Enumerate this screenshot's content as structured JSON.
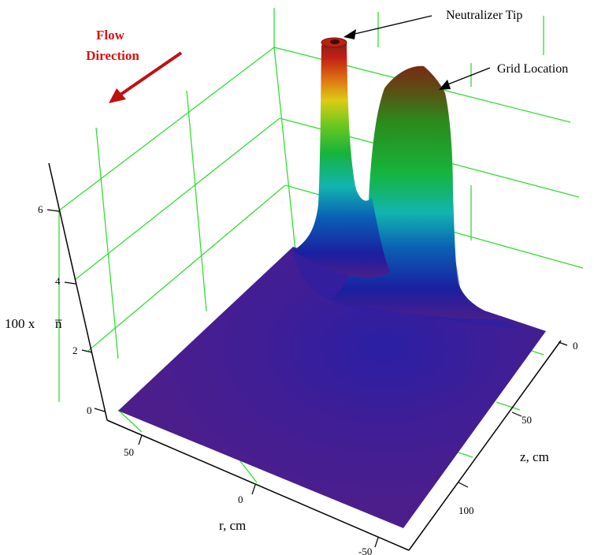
{
  "chart_data": {
    "type": "surface3d",
    "title": "",
    "z_axis": {
      "label": "100 x",
      "label_symbol": "n̅",
      "ticks": [
        0,
        2,
        4,
        6
      ],
      "range": [
        0,
        6.5
      ]
    },
    "r_axis": {
      "label": "r, cm",
      "ticks": [
        50,
        0,
        -50
      ],
      "range": [
        60,
        -60
      ]
    },
    "zc_axis": {
      "label": "z, cm",
      "ticks": [
        0,
        50,
        100
      ],
      "range": [
        0,
        125
      ]
    },
    "grid": true,
    "grid_color": "#33dd33",
    "surface_colormap": [
      "#4b1e8c",
      "#1a1fa0",
      "#0a5fb4",
      "#12b4b0",
      "#16b43c",
      "#6ec81e",
      "#dccc14",
      "#e07a14",
      "#c02014",
      "#7a2010"
    ],
    "peaks": [
      {
        "name": "Neutralizer Tip",
        "height": 6.5
      },
      {
        "name": "Grid Location",
        "height": 5.6
      }
    ],
    "annotations": [
      {
        "text": "Neutralizer Tip"
      },
      {
        "text": "Grid Location"
      }
    ],
    "flow_label": {
      "line1": "Flow",
      "line2": "Direction",
      "color": "#dd1111"
    }
  }
}
